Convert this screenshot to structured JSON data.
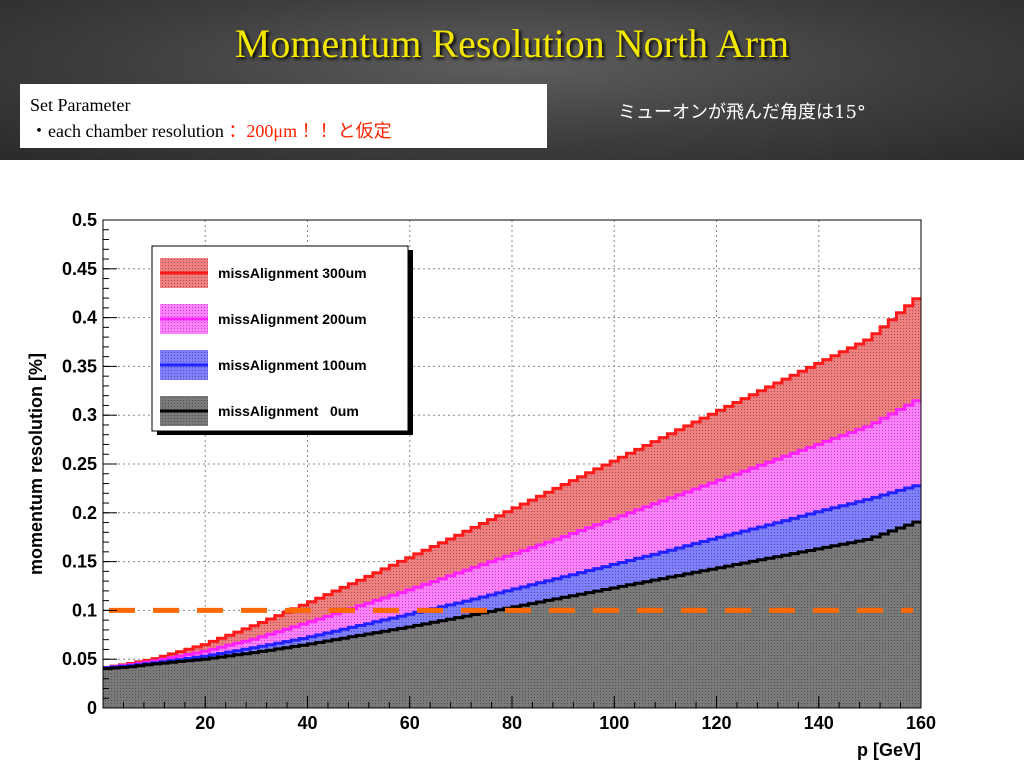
{
  "slide": {
    "title": "Momentum Resolution North Arm",
    "param_heading": "Set Parameter",
    "param_line_prefix": "・each chamber resolution",
    "param_line_value": "：200μm ！！と仮定",
    "note": "ミューオンが飛んだ角度は15°"
  },
  "chart_data": {
    "type": "area",
    "xlabel": "p [GeV]",
    "ylabel": "momentum resolution [%]",
    "xlim": [
      0,
      160
    ],
    "ylim": [
      0,
      0.5
    ],
    "x_ticks": [
      "20",
      "40",
      "60",
      "80",
      "100",
      "120",
      "140",
      "160"
    ],
    "y_ticks": [
      "0",
      "0.05",
      "0.1",
      "0.15",
      "0.2",
      "0.25",
      "0.3",
      "0.35",
      "0.4",
      "0.45",
      "0.5"
    ],
    "grid": true,
    "legend_position": "top-left",
    "reference_line": {
      "y": 0.1,
      "color": "#ff6a00",
      "style": "dashed"
    },
    "series": [
      {
        "name": "missAlignment 300um",
        "color": "#ff1a1a",
        "fill": "#f08080",
        "x": [
          0,
          5,
          10,
          20,
          30,
          40,
          50,
          60,
          70,
          80,
          90,
          100,
          110,
          120,
          130,
          140,
          150,
          160
        ],
        "values": [
          0.041,
          0.045,
          0.05,
          0.065,
          0.085,
          0.107,
          0.13,
          0.154,
          0.178,
          0.203,
          0.228,
          0.253,
          0.278,
          0.303,
          0.328,
          0.353,
          0.378,
          0.423
        ]
      },
      {
        "name": "missAlignment 200um",
        "color": "#ff22ff",
        "fill": "#ff80ff",
        "x": [
          0,
          5,
          10,
          20,
          30,
          40,
          50,
          60,
          70,
          80,
          90,
          100,
          110,
          120,
          130,
          140,
          150,
          160
        ],
        "values": [
          0.041,
          0.044,
          0.048,
          0.058,
          0.071,
          0.087,
          0.104,
          0.121,
          0.139,
          0.157,
          0.175,
          0.194,
          0.213,
          0.232,
          0.251,
          0.27,
          0.289,
          0.317
        ]
      },
      {
        "name": "missAlignment 100um",
        "color": "#2222ff",
        "fill": "#8080ff",
        "x": [
          0,
          5,
          10,
          20,
          30,
          40,
          50,
          60,
          70,
          80,
          90,
          100,
          110,
          120,
          130,
          140,
          150,
          160
        ],
        "values": [
          0.041,
          0.043,
          0.046,
          0.053,
          0.062,
          0.072,
          0.084,
          0.096,
          0.108,
          0.121,
          0.134,
          0.147,
          0.16,
          0.174,
          0.187,
          0.201,
          0.214,
          0.229
        ]
      },
      {
        "name": "missAlignment   0um",
        "color": "#000000",
        "fill": "#7a7a7a",
        "x": [
          0,
          5,
          10,
          20,
          30,
          40,
          50,
          60,
          70,
          80,
          90,
          100,
          110,
          120,
          130,
          140,
          150,
          160
        ],
        "values": [
          0.04,
          0.042,
          0.045,
          0.05,
          0.057,
          0.065,
          0.074,
          0.083,
          0.093,
          0.103,
          0.113,
          0.123,
          0.133,
          0.143,
          0.153,
          0.163,
          0.173,
          0.192
        ]
      }
    ]
  }
}
